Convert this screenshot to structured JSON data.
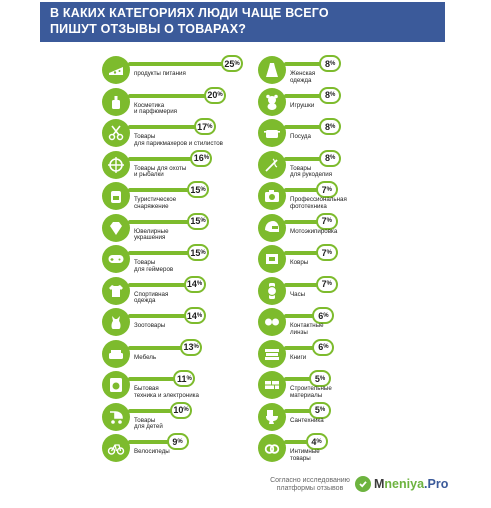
{
  "title": {
    "line1": "В КАКИХ КАТЕГОРИЯХ ЛЮДИ ЧАЩЕ ВСЕГО",
    "line2": "ПИШУТ ОТЗЫВЫ О ТОВАРАХ?"
  },
  "colors": {
    "title_bg": "#3b5a9a",
    "green": "#7dbb2d",
    "dark_green": "#2e7d32",
    "white": "#ffffff"
  },
  "chart_data": {
    "type": "bar",
    "unit": "%",
    "categories_left": [
      {
        "label": "продукты питания",
        "value": 25,
        "icon": "cheese-icon"
      },
      {
        "label": "Косметика\nи парфюмерия",
        "value": 20,
        "icon": "perfume-icon"
      },
      {
        "label": "Товары\nдля парикмахеров и стилистов",
        "value": 17,
        "icon": "scissors-icon"
      },
      {
        "label": "Товары для охоты\nи рыбалки",
        "value": 16,
        "icon": "crosshair-icon"
      },
      {
        "label": "Туристическое\nснаряжение",
        "value": 15,
        "icon": "backpack-icon"
      },
      {
        "label": "Ювелирные\nукрашения",
        "value": 15,
        "icon": "diamond-icon"
      },
      {
        "label": "Товары\nдля геймеров",
        "value": 15,
        "icon": "gamepad-icon"
      },
      {
        "label": "Спортивная\nодежда",
        "value": 14,
        "icon": "tshirt-icon"
      },
      {
        "label": "Зоотовары",
        "value": 14,
        "icon": "cat-icon"
      },
      {
        "label": "Мебель",
        "value": 13,
        "icon": "sofa-icon"
      },
      {
        "label": "Бытовая\nтехника и электроника",
        "value": 11,
        "icon": "washer-icon"
      },
      {
        "label": "Товары\nдля детей",
        "value": 10,
        "icon": "stroller-icon"
      },
      {
        "label": "Велосипеды",
        "value": 9,
        "icon": "bicycle-icon"
      }
    ],
    "categories_right": [
      {
        "label": "Женская\nодежда",
        "value": 8,
        "icon": "dress-icon"
      },
      {
        "label": "Игрушки",
        "value": 8,
        "icon": "teddy-bear-icon"
      },
      {
        "label": "Посуда",
        "value": 8,
        "icon": "pot-icon"
      },
      {
        "label": "Товары\nдля рукоделия",
        "value": 8,
        "icon": "needle-icon"
      },
      {
        "label": "Профессиональная\nфототехника",
        "value": 7,
        "icon": "camera-icon"
      },
      {
        "label": "Мотоэкипировка",
        "value": 7,
        "icon": "helmet-icon"
      },
      {
        "label": "Ковры",
        "value": 7,
        "icon": "carpet-icon"
      },
      {
        "label": "Часы",
        "value": 7,
        "icon": "watch-icon"
      },
      {
        "label": "Контактные\nлинзы",
        "value": 6,
        "icon": "lens-icon"
      },
      {
        "label": "Книги",
        "value": 6,
        "icon": "books-icon"
      },
      {
        "label": "Строительные\nматериалы",
        "value": 5,
        "icon": "bricks-icon"
      },
      {
        "label": "Сантехника",
        "value": 5,
        "icon": "toilet-icon"
      },
      {
        "label": "Интимные\nтовары",
        "value": 4,
        "icon": "rings-icon"
      }
    ]
  },
  "footer": {
    "source": "Согласно исследованию\nплатформы отзывов",
    "logo_part1": "M",
    "logo_part2": "neniya",
    "logo_part3": ".Pro"
  }
}
